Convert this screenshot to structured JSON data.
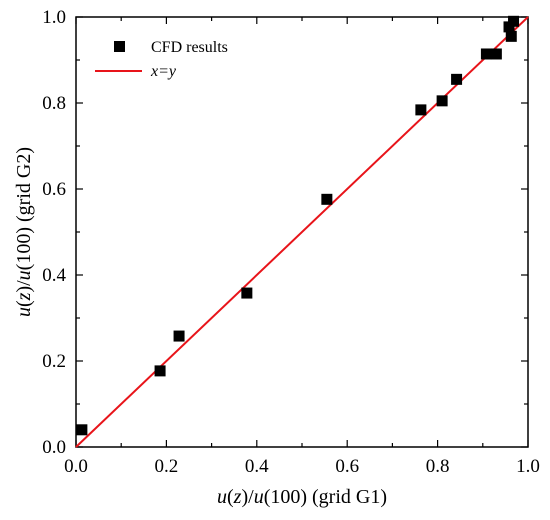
{
  "chart_data": {
    "type": "scatter",
    "xlim": [
      0.0,
      1.0
    ],
    "ylim": [
      0.0,
      1.0
    ],
    "xticks": [
      "0.0",
      "0.2",
      "0.4",
      "0.6",
      "0.8",
      "1.0"
    ],
    "yticks": [
      "0.0",
      "0.2",
      "0.4",
      "0.6",
      "0.8",
      "1.0"
    ],
    "xlabel": "u(z)/u(100)    (grid G1)",
    "ylabel": "u(z)/u(100)    (grid G2)",
    "legend_position": "top-left",
    "series": [
      {
        "name": "CFD results",
        "type": "scatter",
        "marker": "square",
        "color": "#000000",
        "x": [
          0.013,
          0.186,
          0.228,
          0.378,
          0.555,
          0.763,
          0.81,
          0.842,
          0.908,
          0.93,
          0.958,
          0.963,
          0.968
        ],
        "y": [
          0.04,
          0.177,
          0.258,
          0.358,
          0.576,
          0.784,
          0.805,
          0.855,
          0.914,
          0.914,
          0.977,
          0.955,
          0.99
        ]
      },
      {
        "name": "x=y",
        "type": "line",
        "color": "#e8141a",
        "x": [
          0.0,
          1.0
        ],
        "y": [
          0.0,
          1.0
        ]
      }
    ]
  }
}
